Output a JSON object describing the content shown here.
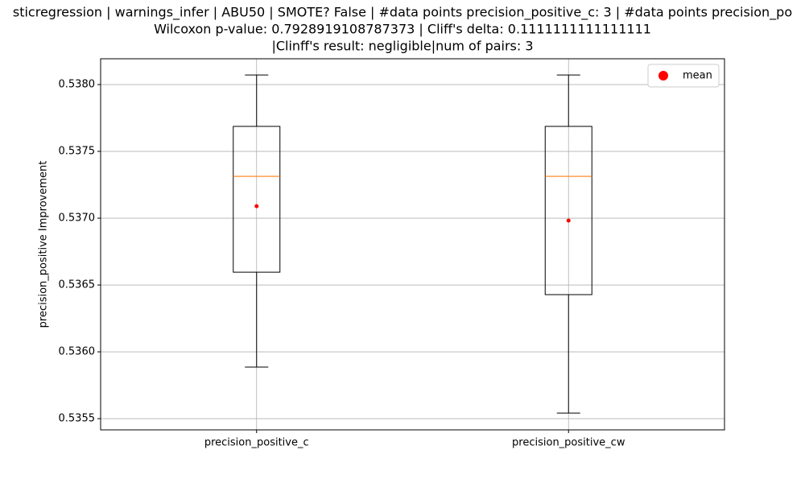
{
  "chart_data": {
    "type": "box",
    "title_lines": [
      "sticregression | warnings_infer | ABU50 | SMOTE? False | #data points precision_positive_c: 3 | #data points precision_po",
      "Wilcoxon p-value: 0.7928919108787373 | Cliff's delta: 0.1111111111111111",
      "|Clinff's result: negligible|num of pairs: 3"
    ],
    "ylabel": "precision_positive Improvement",
    "categories": [
      "precision_positive_c",
      "precision_positive_cw"
    ],
    "boxes": [
      {
        "whisker_low": 0.535886,
        "q1": 0.536596,
        "median": 0.537313,
        "q3": 0.537687,
        "whisker_high": 0.538072,
        "mean": 0.53709
      },
      {
        "whisker_low": 0.535542,
        "q1": 0.536428,
        "median": 0.537313,
        "q3": 0.537687,
        "whisker_high": 0.538072,
        "mean": 0.536982
      }
    ],
    "box_color": "#000000",
    "median_color": "#ff7f0e",
    "mean_color": "#ff0000",
    "legend": {
      "label": "mean",
      "position": "upper right"
    },
    "ylim": [
      0.535416,
      0.538193
    ],
    "yticks": [
      0.5355,
      {
        "value": 0.536,
        "label": "0.5360"
      },
      0.5365,
      {
        "value": 0.537,
        "label": "0.5370"
      },
      0.5375,
      {
        "value": 0.538,
        "label": "0.5380"
      }
    ],
    "grid": true
  }
}
